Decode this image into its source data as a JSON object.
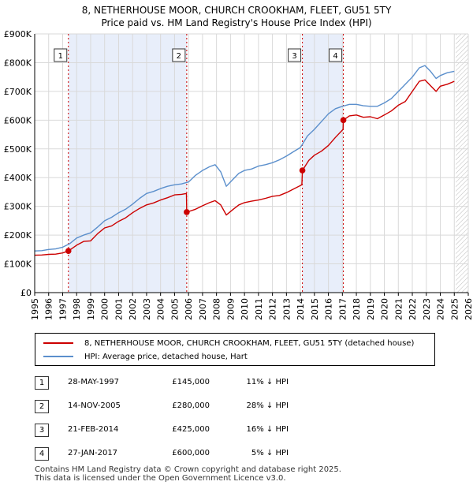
{
  "title_line1": "8, NETHERHOUSE MOOR, CHURCH CROOKHAM, FLEET, GU51 5TY",
  "title_line2": "Price paid vs. HM Land Registry's House Price Index (HPI)",
  "colors": {
    "property": "#cc0000",
    "hpi": "#5b8fcc",
    "band": "#e8eefa",
    "grid": "#d9d9d9"
  },
  "chart_data": {
    "type": "line",
    "xlim": [
      1995,
      2026
    ],
    "ylim": [
      0,
      900000
    ],
    "x_ticks": [
      "1995",
      "1996",
      "1997",
      "1998",
      "1999",
      "2000",
      "2001",
      "2002",
      "2003",
      "2004",
      "2005",
      "2006",
      "2007",
      "2008",
      "2009",
      "2010",
      "2011",
      "2012",
      "2013",
      "2014",
      "2015",
      "2016",
      "2017",
      "2018",
      "2019",
      "2020",
      "2021",
      "2022",
      "2023",
      "2024",
      "2025",
      "2026"
    ],
    "y_ticks": [
      {
        "value": 0,
        "label": "£0"
      },
      {
        "value": 100000,
        "label": "£100K"
      },
      {
        "value": 200000,
        "label": "£200K"
      },
      {
        "value": 300000,
        "label": "£300K"
      },
      {
        "value": 400000,
        "label": "£400K"
      },
      {
        "value": 500000,
        "label": "£500K"
      },
      {
        "value": 600000,
        "label": "£600K"
      },
      {
        "value": 700000,
        "label": "£700K"
      },
      {
        "value": 800000,
        "label": "£800K"
      },
      {
        "value": 900000,
        "label": "£900K"
      }
    ],
    "shaded_periods": [
      [
        1997.41,
        2005.87
      ],
      [
        2014.14,
        2017.07
      ]
    ],
    "future_hatch_start": 2025.1,
    "series": [
      {
        "name": "8, NETHERHOUSE MOOR, CHURCH CROOKHAM, FLEET, GU51 5TY (detached house)",
        "color": "#cc0000",
        "x": [
          1995.0,
          1995.5,
          1996.0,
          1996.5,
          1997.0,
          1997.41,
          1998.0,
          1998.5,
          1999.0,
          1999.5,
          2000.0,
          2000.5,
          2001.0,
          2001.5,
          2002.0,
          2002.5,
          2003.0,
          2003.5,
          2004.0,
          2004.5,
          2005.0,
          2005.5,
          2005.85,
          2005.87,
          2006.5,
          2007.0,
          2007.5,
          2007.9,
          2008.3,
          2008.7,
          2009.2,
          2009.6,
          2010.0,
          2010.5,
          2011.0,
          2011.5,
          2012.0,
          2012.5,
          2013.0,
          2013.5,
          2014.1,
          2014.14,
          2014.6,
          2015.0,
          2015.5,
          2016.0,
          2016.5,
          2017.05,
          2017.07,
          2017.5,
          2018.0,
          2018.5,
          2019.0,
          2019.5,
          2020.0,
          2020.5,
          2021.0,
          2021.5,
          2022.0,
          2022.5,
          2022.9,
          2023.3,
          2023.7,
          2024.0,
          2024.5,
          2025.0
        ],
        "y": [
          130000,
          131000,
          133000,
          134000,
          138000,
          145000,
          165000,
          178000,
          180000,
          205000,
          225000,
          232000,
          248000,
          260000,
          278000,
          293000,
          305000,
          312000,
          322000,
          330000,
          340000,
          342000,
          345000,
          280000,
          290000,
          302000,
          313000,
          320000,
          305000,
          270000,
          290000,
          305000,
          313000,
          318000,
          322000,
          328000,
          335000,
          338000,
          348000,
          360000,
          375000,
          425000,
          460000,
          478000,
          492000,
          512000,
          540000,
          568000,
          600000,
          615000,
          618000,
          610000,
          612000,
          605000,
          618000,
          632000,
          652000,
          665000,
          700000,
          735000,
          740000,
          720000,
          700000,
          718000,
          725000,
          735000
        ]
      },
      {
        "name": "HPI: Average price, detached house, Hart",
        "color": "#5b8fcc",
        "x": [
          1995.0,
          1995.5,
          1996.0,
          1996.5,
          1997.0,
          1997.5,
          1998.0,
          1998.5,
          1999.0,
          1999.5,
          2000.0,
          2000.5,
          2001.0,
          2001.5,
          2002.0,
          2002.5,
          2003.0,
          2003.5,
          2004.0,
          2004.5,
          2005.0,
          2005.5,
          2006.0,
          2006.5,
          2007.0,
          2007.5,
          2007.9,
          2008.3,
          2008.7,
          2009.2,
          2009.6,
          2010.0,
          2010.5,
          2011.0,
          2011.5,
          2012.0,
          2012.5,
          2013.0,
          2013.5,
          2014.0,
          2014.5,
          2015.0,
          2015.5,
          2016.0,
          2016.5,
          2017.0,
          2017.5,
          2018.0,
          2018.5,
          2019.0,
          2019.5,
          2020.0,
          2020.5,
          2021.0,
          2021.5,
          2022.0,
          2022.5,
          2022.9,
          2023.3,
          2023.7,
          2024.0,
          2024.5,
          2025.0
        ],
        "y": [
          145000,
          146000,
          150000,
          152000,
          158000,
          170000,
          190000,
          200000,
          208000,
          228000,
          250000,
          262000,
          278000,
          290000,
          308000,
          328000,
          345000,
          352000,
          362000,
          370000,
          375000,
          378000,
          385000,
          408000,
          425000,
          438000,
          445000,
          420000,
          370000,
          395000,
          415000,
          425000,
          430000,
          440000,
          445000,
          452000,
          462000,
          475000,
          490000,
          505000,
          545000,
          568000,
          595000,
          622000,
          640000,
          648000,
          655000,
          655000,
          650000,
          648000,
          648000,
          660000,
          675000,
          700000,
          725000,
          750000,
          782000,
          790000,
          770000,
          745000,
          755000,
          765000,
          770000
        ]
      }
    ],
    "sales": [
      {
        "num": "1",
        "x": 1997.41,
        "price": 145000
      },
      {
        "num": "2",
        "x": 2005.87,
        "price": 280000
      },
      {
        "num": "3",
        "x": 2014.14,
        "price": 425000
      },
      {
        "num": "4",
        "x": 2017.07,
        "price": 600000
      }
    ]
  },
  "legend": {
    "property_label": "8, NETHERHOUSE MOOR, CHURCH CROOKHAM, FLEET, GU51 5TY (detached house)",
    "hpi_label": "HPI: Average price, detached house, Hart"
  },
  "sales_table": [
    {
      "num": "1",
      "date": "28-MAY-1997",
      "price": "£145,000",
      "hpi": "11% ↓ HPI"
    },
    {
      "num": "2",
      "date": "14-NOV-2005",
      "price": "£280,000",
      "hpi": "28% ↓ HPI"
    },
    {
      "num": "3",
      "date": "21-FEB-2014",
      "price": "£425,000",
      "hpi": "16% ↓ HPI"
    },
    {
      "num": "4",
      "date": "27-JAN-2017",
      "price": "£600,000",
      "hpi": "5% ↓ HPI"
    }
  ],
  "footer": {
    "line1": "Contains HM Land Registry data © Crown copyright and database right 2025.",
    "line2": "This data is licensed under the Open Government Licence v3.0."
  }
}
